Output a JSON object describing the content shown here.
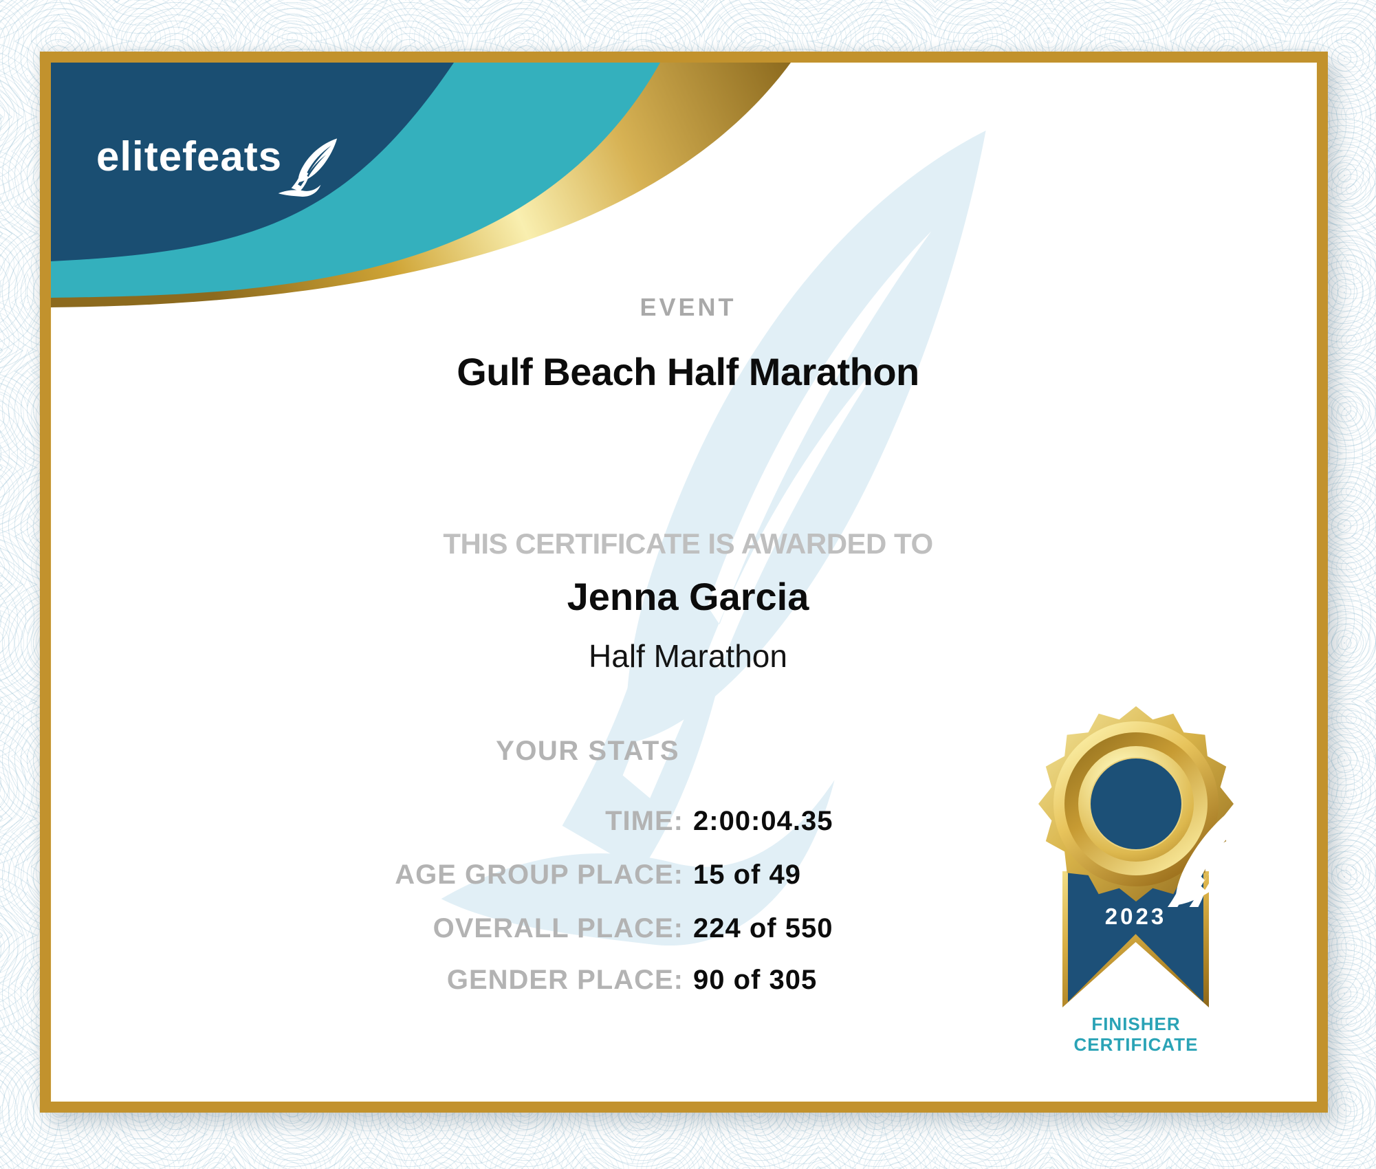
{
  "brand": {
    "name": "elitefeats"
  },
  "certificate": {
    "event_label": "EVENT",
    "event_name": "Gulf Beach Half Marathon",
    "awarded_label": "THIS CERTIFICATE IS AWARDED TO",
    "recipient_name": "Jenna Garcia",
    "race_name": "Half Marathon",
    "stats_heading": "YOUR STATS",
    "stats": [
      {
        "label": "TIME:",
        "value": "2:00:04.35"
      },
      {
        "label": "AGE GROUP PLACE:",
        "value": "15 of 49"
      },
      {
        "label": "OVERALL PLACE:",
        "value": "224 of 550"
      },
      {
        "label": "GENDER PLACE:",
        "value": "90 of 305"
      }
    ],
    "badge": {
      "year": "2023",
      "caption_line1": "FINISHER",
      "caption_line2": "CERTIFICATE"
    }
  },
  "colors": {
    "navy": "#1a4e72",
    "teal": "#34b0bd",
    "frame_gold": "#c2922d",
    "ribbon_navy": "#1d5078",
    "caption_teal": "#2aa3b6",
    "label_gray": "#b3b3b3",
    "watermark_blue": "#e1eff6"
  }
}
